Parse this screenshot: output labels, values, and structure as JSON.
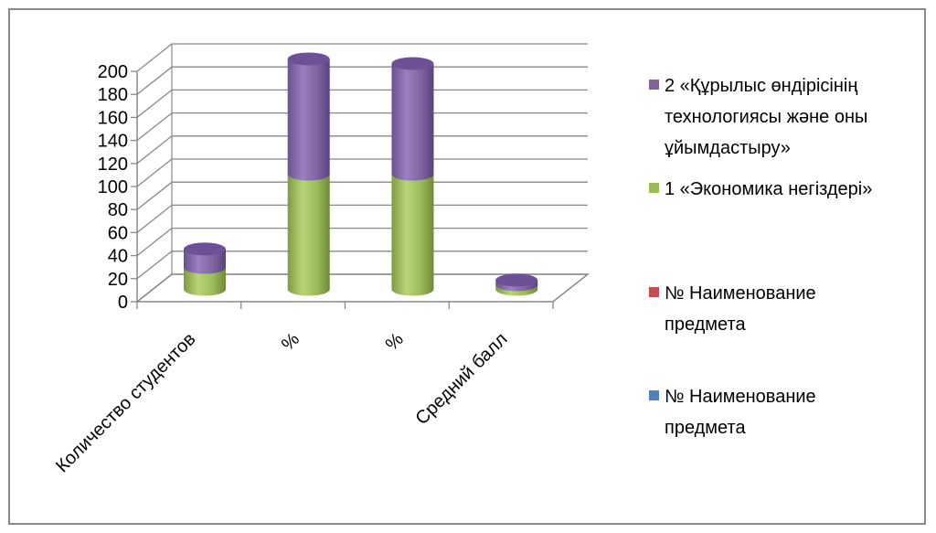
{
  "chart_data": {
    "type": "bar",
    "stacked": true,
    "three_d": true,
    "shape": "cylinder",
    "categories": [
      "Количество студентов",
      "%",
      "%",
      "Средний балл"
    ],
    "series": [
      {
        "name": "№ Наименование предмета",
        "values": [
          0,
          0,
          0,
          0
        ],
        "color": "#4f81bd"
      },
      {
        "name": "№ Наименование предмета",
        "values": [
          0,
          0,
          0,
          0
        ],
        "color": "#c0504d"
      },
      {
        "name": "1 «Экономика негіздері»",
        "values": [
          19,
          100,
          100,
          4
        ],
        "color": "#9bbb59"
      },
      {
        "name": "2 «Құрылыс өндірісінің технологиясы және оны ұйымдастыру»",
        "values": [
          16,
          100,
          96,
          4
        ],
        "color": "#8064a2"
      }
    ],
    "legend_order": [
      3,
      2,
      1,
      0
    ],
    "legend_lines": [
      [
        "2 «Құрылыс өндірісінің",
        "технологиясы және оны",
        "ұйымдастыру»"
      ],
      [
        "1 «Экономика негіздері»"
      ],
      [
        "№ Наименование",
        "предмета"
      ],
      [
        "№ Наименование",
        "предмета"
      ]
    ],
    "ylim": [
      0,
      200
    ],
    "yticks": [
      0,
      20,
      40,
      60,
      80,
      100,
      120,
      140,
      160,
      180,
      200
    ],
    "grid": true,
    "legend_position": "right"
  }
}
